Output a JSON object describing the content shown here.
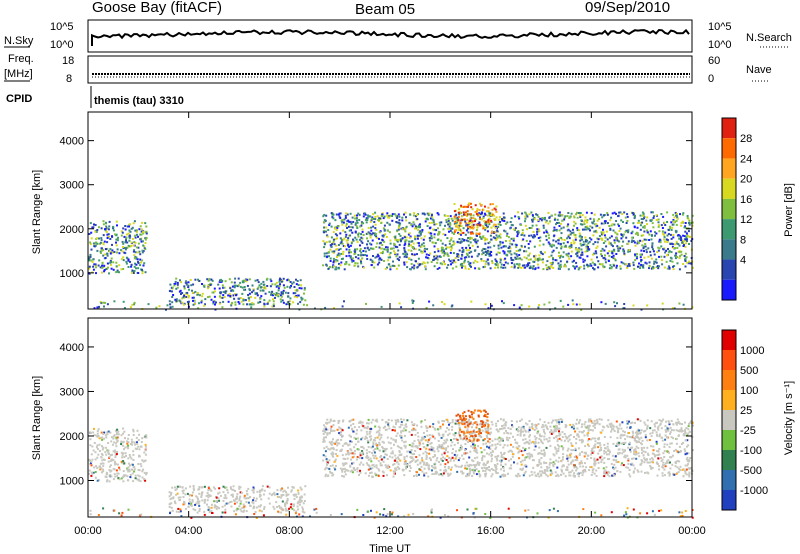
{
  "header": {
    "station": "Goose Bay (fitACF)",
    "beam": "Beam 05",
    "date": "09/Sep/2010"
  },
  "meta_panels": {
    "nsky_label": "N.Sky",
    "nsky_ticks": [
      "10^5",
      "10^0"
    ],
    "nsearch_label": "N.Search",
    "nsearch_ticks": [
      "10^5",
      "10^0"
    ],
    "freq_label_1": "Freq.",
    "freq_label_2": "[MHz]",
    "freq_ticks": [
      "18",
      "8"
    ],
    "nave_label": "Nave",
    "nave_ticks": [
      "60",
      "0"
    ],
    "cpid_label": "CPID",
    "cpid_value": "themis (tau) 3310"
  },
  "colors": {
    "power_scale": [
      "#1a1aff",
      "#2845b0",
      "#3a7a8a",
      "#3d9970",
      "#7fbf3f",
      "#d8d820",
      "#ffa520",
      "#ff6a00",
      "#e02010"
    ],
    "velocity_scale": [
      "#2040c0",
      "#3070b0",
      "#308050",
      "#70c040",
      "#c8c8c0",
      "#ffb020",
      "#ff8010",
      "#ff5010",
      "#e00000"
    ],
    "ground_scatter": "#c8c8c0"
  },
  "chart_data": [
    {
      "type": "heatmap",
      "title": "Power",
      "xlabel": "Time UT",
      "ylabel": "Slant Range [km]",
      "x_ticks": [
        "00:00",
        "04:00",
        "08:00",
        "12:00",
        "16:00",
        "20:00",
        "00:00"
      ],
      "xlim_hours": [
        0,
        24
      ],
      "y_ticks": [
        1000,
        2000,
        3000,
        4000
      ],
      "ylim_km": [
        180,
        4650
      ],
      "colorbar_label": "Power [dB]",
      "colorbar_ticks": [
        4,
        8,
        12,
        16,
        20,
        24,
        28
      ],
      "colorbar_range": [
        0,
        30
      ],
      "regions": [
        {
          "t0": 0.0,
          "t1": 2.3,
          "r0": 1000,
          "r1": 2200,
          "level": "mixed"
        },
        {
          "t0": 3.2,
          "t1": 8.6,
          "r0": 300,
          "r1": 900,
          "level": "mixed"
        },
        {
          "t0": 9.3,
          "t1": 24.0,
          "r0": 1100,
          "r1": 2400,
          "level": "mixed"
        },
        {
          "t0": 14.5,
          "t1": 16.2,
          "r0": 1900,
          "r1": 2600,
          "level": "high"
        },
        {
          "t0": 0.0,
          "t1": 24.0,
          "r0": 180,
          "r1": 400,
          "level": "sparse"
        }
      ]
    },
    {
      "type": "heatmap",
      "title": "Velocity",
      "xlabel": "Time UT",
      "ylabel": "Slant Range [km]",
      "x_ticks": [
        "00:00",
        "04:00",
        "08:00",
        "12:00",
        "16:00",
        "20:00",
        "00:00"
      ],
      "xlim_hours": [
        0,
        24
      ],
      "y_ticks": [
        1000,
        2000,
        3000,
        4000
      ],
      "ylim_km": [
        180,
        4650
      ],
      "colorbar_label": "Velocity [m s⁻¹]",
      "colorbar_ticks": [
        "1000",
        "500",
        "100",
        "25",
        "-25",
        "-100",
        "-500",
        "-1000"
      ],
      "regions": [
        {
          "t0": 0.0,
          "t1": 2.3,
          "r0": 1000,
          "r1": 2200,
          "level": "ground"
        },
        {
          "t0": 3.2,
          "t1": 8.6,
          "r0": 300,
          "r1": 900,
          "level": "ground"
        },
        {
          "t0": 9.3,
          "t1": 24.0,
          "r0": 1100,
          "r1": 2400,
          "level": "ground"
        },
        {
          "t0": 14.6,
          "t1": 15.9,
          "r0": 1900,
          "r1": 2600,
          "level": "away"
        },
        {
          "t0": 0.0,
          "t1": 24.0,
          "r0": 180,
          "r1": 400,
          "level": "sparse"
        }
      ]
    }
  ]
}
